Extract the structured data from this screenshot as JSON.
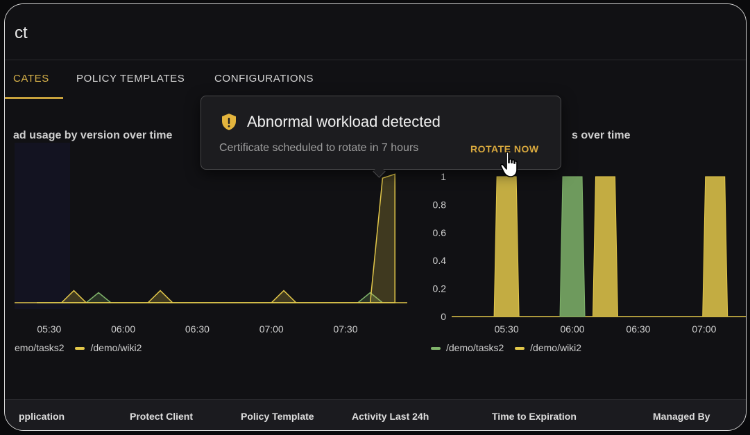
{
  "window": {
    "title": "ct"
  },
  "tabs": [
    {
      "label": "CATES",
      "active": true
    },
    {
      "label": "POLICY TEMPLATES",
      "active": false
    },
    {
      "label": "CONFIGURATIONS",
      "active": false
    }
  ],
  "colors": {
    "accent": "#c9a33d",
    "series_tasks2": "#7fb36a",
    "series_wiki2": "#e3c84a"
  },
  "chart_data": [
    {
      "type": "area",
      "title": "ad usage by version over time",
      "x_ticks": [
        "05:30",
        "06:00",
        "06:30",
        "07:00",
        "07:30"
      ],
      "series": [
        {
          "name": "/demo/tasks2",
          "color": "#7fb36a",
          "points": [
            [
              "05:25",
              0
            ],
            [
              "05:30",
              0
            ],
            [
              "05:35",
              0
            ],
            [
              "05:40",
              0
            ],
            [
              "05:45",
              0
            ],
            [
              "05:50",
              0.25
            ],
            [
              "05:55",
              0
            ],
            [
              "06:00",
              0
            ],
            [
              "06:05",
              0
            ],
            [
              "06:10",
              0
            ],
            [
              "06:15",
              0
            ],
            [
              "06:20",
              0
            ],
            [
              "06:25",
              0
            ],
            [
              "06:30",
              0
            ],
            [
              "06:35",
              0
            ],
            [
              "06:40",
              0
            ],
            [
              "06:45",
              0
            ],
            [
              "06:50",
              0
            ],
            [
              "06:55",
              0
            ],
            [
              "07:00",
              0
            ],
            [
              "07:05",
              0
            ],
            [
              "07:10",
              0
            ],
            [
              "07:15",
              0
            ],
            [
              "07:20",
              0
            ],
            [
              "07:25",
              0
            ],
            [
              "07:30",
              0
            ],
            [
              "07:35",
              0
            ],
            [
              "07:40",
              0.25
            ],
            [
              "07:45",
              0
            ],
            [
              "07:50",
              0
            ]
          ]
        },
        {
          "name": "/demo/wiki2",
          "color": "#e3c84a",
          "points": [
            [
              "05:25",
              0
            ],
            [
              "05:30",
              0
            ],
            [
              "05:35",
              0
            ],
            [
              "05:40",
              0.3
            ],
            [
              "05:45",
              0
            ],
            [
              "05:50",
              0
            ],
            [
              "05:55",
              0
            ],
            [
              "06:00",
              0
            ],
            [
              "06:05",
              0
            ],
            [
              "06:10",
              0
            ],
            [
              "06:15",
              0.3
            ],
            [
              "06:20",
              0
            ],
            [
              "06:25",
              0
            ],
            [
              "06:30",
              0
            ],
            [
              "06:35",
              0
            ],
            [
              "06:40",
              0
            ],
            [
              "06:45",
              0
            ],
            [
              "06:50",
              0
            ],
            [
              "06:55",
              0
            ],
            [
              "07:00",
              0
            ],
            [
              "07:05",
              0.3
            ],
            [
              "07:10",
              0
            ],
            [
              "07:15",
              0
            ],
            [
              "07:20",
              0
            ],
            [
              "07:25",
              0
            ],
            [
              "07:30",
              0
            ],
            [
              "07:35",
              0
            ],
            [
              "07:40",
              0
            ],
            [
              "07:45",
              3.1
            ],
            [
              "07:50",
              3.2
            ]
          ]
        }
      ]
    },
    {
      "type": "area",
      "title": "s over time",
      "y_ticks": [
        "0",
        "0.2",
        "0.4",
        "0.6",
        "0.8",
        "1"
      ],
      "x_ticks": [
        "05:30",
        "06:00",
        "06:30",
        "07:00"
      ],
      "ylim": [
        0,
        1
      ],
      "series": [
        {
          "name": "/demo/tasks2",
          "color": "#7fb36a",
          "points": [
            [
              "06:00",
              1
            ]
          ]
        },
        {
          "name": "/demo/wiki2",
          "color": "#e3c84a",
          "points": [
            [
              "05:30",
              1
            ],
            [
              "06:15",
              1
            ],
            [
              "07:05",
              1
            ]
          ]
        }
      ]
    }
  ],
  "legend_left": [
    {
      "name": "emo/tasks2",
      "color": "#7fb36a"
    },
    {
      "name": "/demo/wiki2",
      "color": "#e3c84a"
    }
  ],
  "legend_right": [
    {
      "name": "/demo/tasks2",
      "color": "#7fb36a"
    },
    {
      "name": "/demo/wiki2",
      "color": "#e3c84a"
    }
  ],
  "table": {
    "headers": [
      "pplication",
      "Protect Client",
      "Policy Template",
      "Activity Last 24h",
      "Time to Expiration",
      "Managed By"
    ]
  },
  "toast": {
    "icon": "shield-alert-icon",
    "title": "Abnormal workload detected",
    "message": "Certificate scheduled to rotate in 7 hours",
    "action": "ROTATE NOW"
  }
}
